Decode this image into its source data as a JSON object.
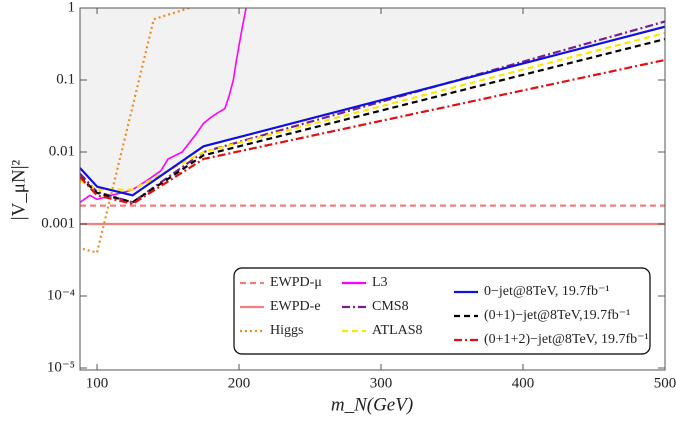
{
  "chart_data": {
    "type": "line",
    "x_label": "m_N(GeV)",
    "y_label": "|V_μN|²",
    "xlim": [
      88,
      500
    ],
    "xticks": [
      100,
      200,
      300,
      400,
      500
    ],
    "ylim": [
      1e-05,
      1
    ],
    "ylog": true,
    "yticks": [
      {
        "value": 1,
        "label": "1"
      },
      {
        "value": 0.1,
        "label": "0.1"
      },
      {
        "value": 0.01,
        "label": "0.01"
      },
      {
        "value": 0.001,
        "label": "0.001"
      },
      {
        "value": 0.0001,
        "label": "10⁻⁴"
      },
      {
        "value": 1e-05,
        "label": "10⁻⁵"
      }
    ],
    "shade_color": "#f2f2f2",
    "series": [
      {
        "name": "EWPD-μ",
        "color": "#f08080",
        "dash": "dashed",
        "x": [
          88,
          500
        ],
        "values": [
          0.0018,
          0.0018
        ]
      },
      {
        "name": "EWPD-e",
        "color": "#f08080",
        "dash": "solid",
        "x": [
          88,
          500
        ],
        "values": [
          0.001,
          0.001
        ]
      },
      {
        "name": "Higgs",
        "color": "#f08a24",
        "dash": "dotted",
        "x": [
          90,
          100,
          140,
          165
        ],
        "values": [
          0.00045,
          0.0004,
          0.7,
          1
        ]
      },
      {
        "name": "L3",
        "color": "#ff00ff",
        "dash": "solid",
        "x": [
          88,
          95,
          100,
          110,
          120,
          125,
          135,
          145,
          150,
          160,
          170,
          175,
          180,
          185,
          190,
          193,
          196,
          198,
          200,
          202,
          204,
          205
        ],
        "values": [
          0.002,
          0.0025,
          0.0022,
          0.0025,
          0.0028,
          0.003,
          0.004,
          0.0055,
          0.008,
          0.01,
          0.018,
          0.025,
          0.03,
          0.035,
          0.04,
          0.06,
          0.1,
          0.18,
          0.3,
          0.5,
          0.8,
          1
        ]
      },
      {
        "name": "CMS8",
        "color": "#7a1f8f",
        "dash": "dashdot",
        "x": [
          88,
          100,
          125,
          175,
          500
        ],
        "values": [
          0.005,
          0.0028,
          0.002,
          0.01,
          0.65
        ]
      },
      {
        "name": "ATLAS8",
        "color": "#ffe500",
        "dash": "dashed",
        "x": [
          88,
          100,
          125,
          175,
          500
        ],
        "values": [
          0.004,
          0.003,
          0.003,
          0.01,
          0.45
        ]
      },
      {
        "name": "0−jet@8TeV, 19.7fb⁻¹",
        "color": "#1010e0",
        "dash": "solid",
        "x": [
          88,
          100,
          125,
          175,
          500
        ],
        "values": [
          0.006,
          0.0033,
          0.0025,
          0.012,
          0.55
        ]
      },
      {
        "name": "(0+1)−jet@8TeV,19.7fb⁻¹",
        "color": "#000000",
        "dash": "dashed",
        "x": [
          88,
          100,
          125,
          175,
          500
        ],
        "values": [
          0.0045,
          0.0027,
          0.002,
          0.009,
          0.37
        ]
      },
      {
        "name": "(0+1+2)−jet@8TeV, 19.7fb⁻¹",
        "color": "#e01010",
        "dash": "dashdot",
        "x": [
          88,
          100,
          125,
          175,
          500
        ],
        "values": [
          0.0045,
          0.0025,
          0.0019,
          0.008,
          0.19
        ]
      }
    ]
  }
}
